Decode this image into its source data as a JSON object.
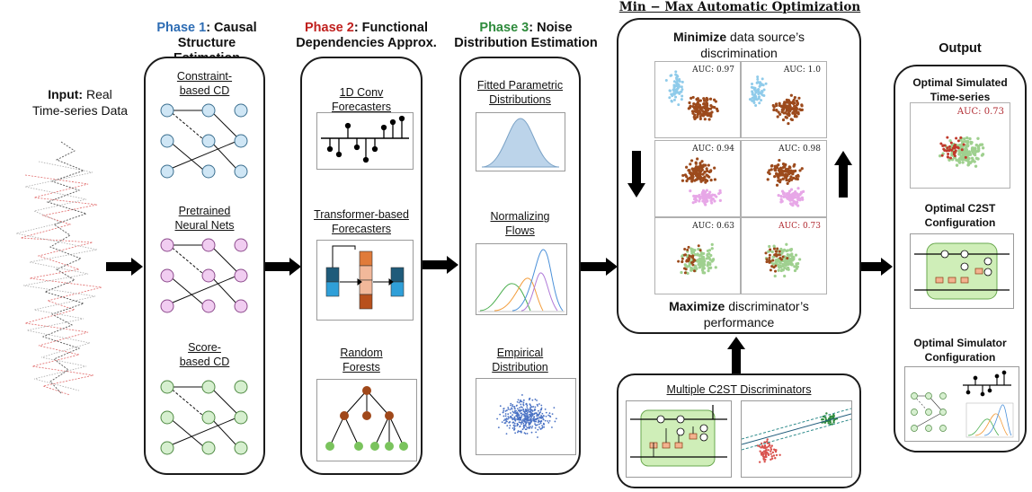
{
  "input": {
    "bold": "Input:",
    "text1": " Real",
    "text2": "Time-series Data"
  },
  "phase1": {
    "num": "Phase 1",
    "rest": ": Causal",
    "line2": "Structure Estimation",
    "items": [
      "Constraint-",
      "based CD",
      "Pretrained",
      "Neural Nets",
      "Score-",
      "based CD"
    ]
  },
  "phase2": {
    "num": "Phase 2",
    "rest": ": Functional",
    "line2": "Dependencies Approx.",
    "items": [
      "1D Conv",
      "Forecasters",
      "Transformer-based",
      "Forecasters",
      "Random",
      "Forests"
    ]
  },
  "phase3": {
    "num": "Phase 3",
    "rest": ": Noise",
    "line2": "Distribution Estimation",
    "items": [
      "Fitted Parametric",
      "Distributions",
      "Normalizing",
      "Flows",
      "Empirical",
      "Distribution"
    ]
  },
  "minmax": {
    "title": "Min − Max Automatic Optimization",
    "top_bold": "Minimize",
    "top_rest": " data source’s",
    "top_line2": "discrimination",
    "bottom_bold": "Maximize",
    "bottom_rest": " discriminator’s",
    "bottom_line2": "performance",
    "auc": [
      "AUC: 0.97",
      "AUC: 1.0",
      "AUC: 0.94",
      "AUC: 0.98",
      "AUC: 0.63",
      "AUC: 0.73"
    ]
  },
  "discriminators": {
    "title": "Multiple C2ST Discriminators"
  },
  "output": {
    "title": "Output",
    "item1a": "Optimal Simulated",
    "item1b": "Time-series",
    "auc": "AUC: 0.73",
    "item2a": "Optimal C2ST",
    "item2b": "Configuration",
    "item3a": "Optimal Simulator",
    "item3b": "Configuration"
  },
  "colors": {
    "phase1": "#2e6db4",
    "phase2": "#c0201e",
    "phase3": "#2e8b3c",
    "node_blue": "#cfe6f5",
    "node_pink": "#f1cdf1",
    "node_green": "#d6efcf",
    "brown": "#9c4a1c",
    "light_blue": "#8fcbea",
    "pink_pts": "#e7a7e7",
    "green_pts": "#9fd08f"
  }
}
